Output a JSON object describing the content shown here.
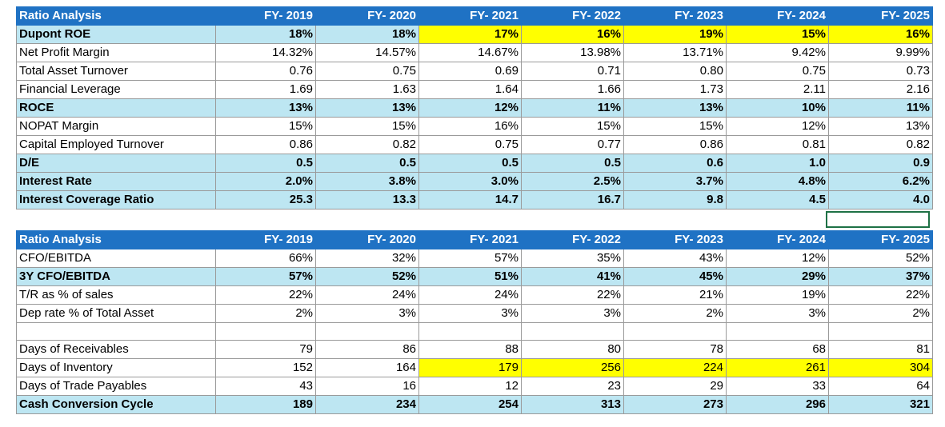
{
  "years": [
    "FY- 2019",
    "FY- 2020",
    "FY- 2021",
    "FY- 2022",
    "FY- 2023",
    "FY- 2024",
    "FY- 2025"
  ],
  "colors": {
    "header_bg": "#1f72c4",
    "highlight_row_bg": "#bde6f2",
    "yellow_cell": "#ffff00",
    "selection_border": "#1e7145"
  },
  "table1": {
    "title": "Ratio Analysis",
    "rows": [
      {
        "label": "Dupont ROE",
        "style": "hl",
        "values": [
          "18%",
          "18%",
          "17%",
          "16%",
          "19%",
          "15%",
          "16%"
        ],
        "yellow": [
          2,
          3,
          4,
          5,
          6
        ]
      },
      {
        "label": "Net Profit Margin",
        "style": "plain",
        "values": [
          "14.32%",
          "14.57%",
          "14.67%",
          "13.98%",
          "13.71%",
          "9.42%",
          "9.99%"
        ],
        "yellow": []
      },
      {
        "label": "Total Asset Turnover",
        "style": "plain",
        "values": [
          "0.76",
          "0.75",
          "0.69",
          "0.71",
          "0.80",
          "0.75",
          "0.73"
        ],
        "yellow": []
      },
      {
        "label": "Financial Leverage",
        "style": "plain",
        "values": [
          "1.69",
          "1.63",
          "1.64",
          "1.66",
          "1.73",
          "2.11",
          "2.16"
        ],
        "yellow": []
      },
      {
        "label": "ROCE",
        "style": "hl",
        "values": [
          "13%",
          "13%",
          "12%",
          "11%",
          "13%",
          "10%",
          "11%"
        ],
        "yellow": []
      },
      {
        "label": "NOPAT Margin",
        "style": "plain",
        "values": [
          "15%",
          "15%",
          "16%",
          "15%",
          "15%",
          "12%",
          "13%"
        ],
        "yellow": []
      },
      {
        "label": "Capital Employed Turnover",
        "style": "plain",
        "values": [
          "0.86",
          "0.82",
          "0.75",
          "0.77",
          "0.86",
          "0.81",
          "0.82"
        ],
        "yellow": []
      },
      {
        "label": "D/E",
        "style": "hl",
        "values": [
          "0.5",
          "0.5",
          "0.5",
          "0.5",
          "0.6",
          "1.0",
          "0.9"
        ],
        "yellow": []
      },
      {
        "label": "Interest Rate",
        "style": "hl",
        "values": [
          "2.0%",
          "3.8%",
          "3.0%",
          "2.5%",
          "3.7%",
          "4.8%",
          "6.2%"
        ],
        "yellow": []
      },
      {
        "label": "Interest Coverage Ratio",
        "style": "hl",
        "values": [
          "25.3",
          "13.3",
          "14.7",
          "16.7",
          "9.8",
          "4.5",
          "4.0"
        ],
        "yellow": []
      }
    ]
  },
  "table2": {
    "title": "Ratio Analysis",
    "rows": [
      {
        "label": "CFO/EBITDA",
        "style": "plain",
        "values": [
          "66%",
          "32%",
          "57%",
          "35%",
          "43%",
          "12%",
          "52%"
        ],
        "yellow": []
      },
      {
        "label": "3Y CFO/EBITDA",
        "style": "hl",
        "values": [
          "57%",
          "52%",
          "51%",
          "41%",
          "45%",
          "29%",
          "37%"
        ],
        "yellow": []
      },
      {
        "label": "T/R as % of sales",
        "style": "plain",
        "values": [
          "22%",
          "24%",
          "24%",
          "22%",
          "21%",
          "19%",
          "22%"
        ],
        "yellow": []
      },
      {
        "label": "Dep rate % of Total Asset",
        "style": "plain",
        "values": [
          "2%",
          "3%",
          "3%",
          "3%",
          "2%",
          "3%",
          "2%"
        ],
        "yellow": []
      },
      {
        "label": "",
        "style": "blank",
        "values": [
          "",
          "",
          "",
          "",
          "",
          "",
          ""
        ],
        "yellow": []
      },
      {
        "label": "Days of Receivables",
        "style": "plain",
        "values": [
          "79",
          "86",
          "88",
          "80",
          "78",
          "68",
          "81"
        ],
        "yellow": []
      },
      {
        "label": "Days of Inventory",
        "style": "plain",
        "values": [
          "152",
          "164",
          "179",
          "256",
          "224",
          "261",
          "304"
        ],
        "yellow": [
          2,
          3,
          4,
          5,
          6
        ]
      },
      {
        "label": "Days of Trade Payables",
        "style": "plain",
        "values": [
          "43",
          "16",
          "12",
          "23",
          "29",
          "33",
          "64"
        ],
        "yellow": []
      },
      {
        "label": "Cash Conversion Cycle",
        "style": "hl",
        "values": [
          "189",
          "234",
          "254",
          "313",
          "273",
          "296",
          "321"
        ],
        "yellow": []
      }
    ]
  }
}
